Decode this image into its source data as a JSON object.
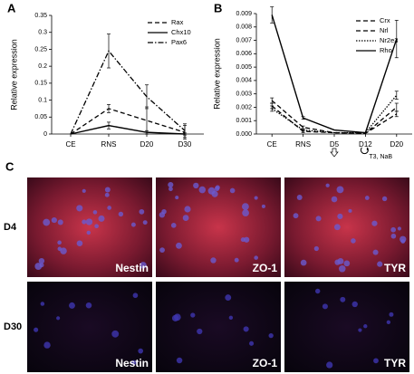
{
  "chart_data": [
    {
      "type": "line",
      "panel": "A",
      "ylabel": "Relative expression",
      "categories": [
        "CE",
        "RNS",
        "D20",
        "D30"
      ],
      "ylim": [
        0,
        0.35
      ],
      "yticks": [
        0,
        0.05,
        0.1,
        0.15,
        0.2,
        0.25,
        0.3,
        0.35
      ],
      "legend": "top-right",
      "series": [
        {
          "name": "Rax",
          "color": "#000000",
          "dash": "dashed",
          "values": [
            0,
            0.075,
            0.04,
            0.005
          ],
          "errors": [
            0,
            0.012,
            0.04,
            0.02
          ]
        },
        {
          "name": "Chx10",
          "color": "#000000",
          "dash": "solid",
          "values": [
            0,
            0.025,
            0.005,
            0
          ],
          "errors": [
            0,
            0.01,
            0.005,
            0.003
          ]
        },
        {
          "name": "Pax6",
          "color": "#000000",
          "dash": "dashdot",
          "values": [
            0,
            0.245,
            0.11,
            0.01
          ],
          "errors": [
            0,
            0.05,
            0.035,
            0.02
          ]
        }
      ]
    },
    {
      "type": "line",
      "panel": "B",
      "ylabel": "Relative expression",
      "categories": [
        "CE",
        "RNS",
        "D5",
        "D12",
        "D20"
      ],
      "ylim": [
        0,
        0.009
      ],
      "yticks": [
        {
          "value": 0,
          "label": "0.000"
        },
        {
          "value": 0.001,
          "label": "0.001"
        },
        {
          "value": 0.002,
          "label": "0.002"
        },
        {
          "value": 0.003,
          "label": "0.003"
        },
        {
          "value": 0.004,
          "label": "0.004"
        },
        {
          "value": 0.005,
          "label": "0.005"
        },
        {
          "value": 0.006,
          "label": "0.006"
        },
        {
          "value": 0.007,
          "label": "0.007"
        },
        {
          "value": 0.008,
          "label": "0.008"
        },
        {
          "value": 0.009,
          "label": "0.009"
        }
      ],
      "legend": "top-right",
      "annotation": "T3, NaB",
      "series": [
        {
          "name": "Crx",
          "color": "#000000",
          "dash": "dashed",
          "values": [
            0.0025,
            0.0005,
            0.0001,
            5e-05,
            0.002
          ],
          "errors": [
            0.0002,
            0.0001,
            0,
            0,
            0.0003
          ]
        },
        {
          "name": "Nrl",
          "color": "#000000",
          "dash": "dashed",
          "values": [
            0.0021,
            0.0002,
            0.0001,
            5e-05,
            0.0015
          ],
          "errors": [
            0.0002,
            0.0001,
            0,
            0,
            0.0002
          ]
        },
        {
          "name": "Nr2e3",
          "color": "#000000",
          "dash": "dotted",
          "values": [
            0.0019,
            0.0003,
            0.0001,
            0.0001,
            0.0029
          ],
          "errors": [
            0.0002,
            0.0001,
            0,
            0,
            0.0003
          ]
        },
        {
          "name": "Rho",
          "color": "#000000",
          "dash": "solid",
          "values": [
            0.0089,
            0.0012,
            0.0003,
            0.0001,
            0.0071
          ],
          "errors": [
            0.0006,
            0.0001,
            0,
            0,
            0.0014
          ]
        }
      ]
    }
  ],
  "micrographs": {
    "panel": "C",
    "rows": [
      {
        "label": "D4",
        "cells": [
          "Nestin",
          "ZO-1",
          "TYR"
        ]
      },
      {
        "label": "D30",
        "cells": [
          "Nestin",
          "ZO-1",
          "TYR"
        ]
      }
    ]
  }
}
